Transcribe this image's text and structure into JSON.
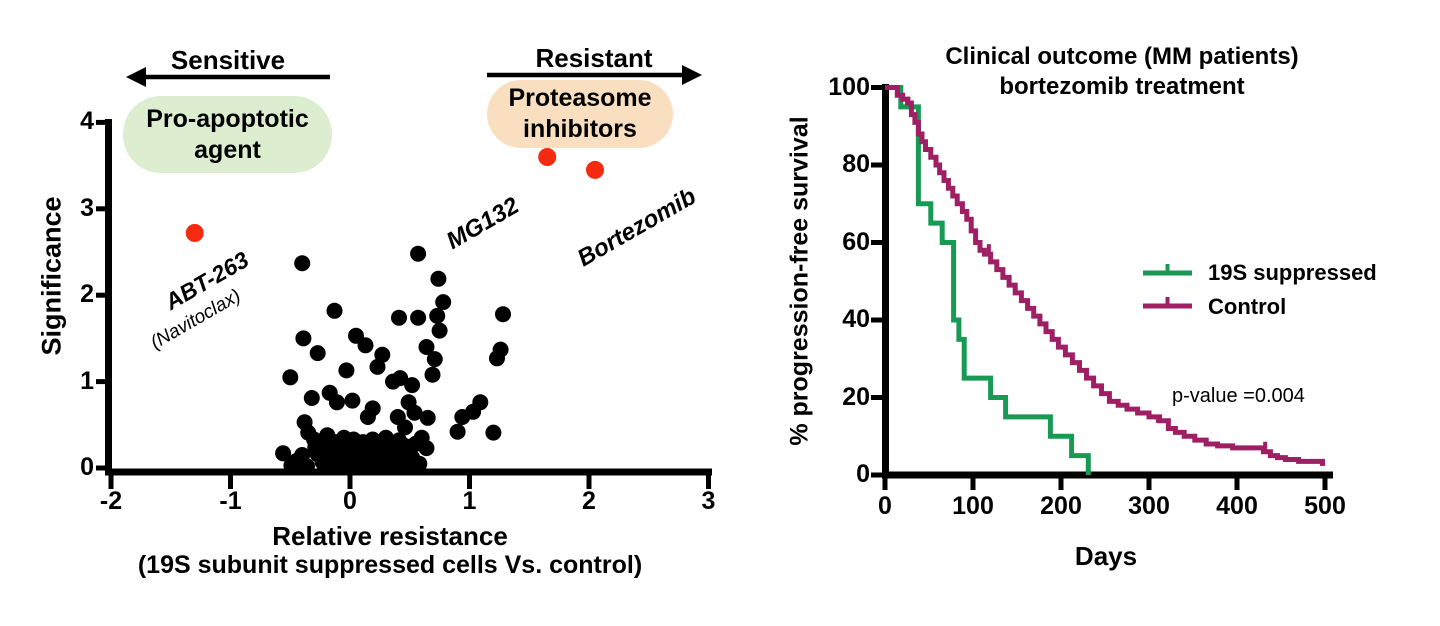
{
  "colors": {
    "accent_red": "#f52a10",
    "scatter_black": "#000000",
    "green_line": "#189a54",
    "maroon_line": "#9e1f63",
    "pill_green_bg": "#dcedd0",
    "pill_orange_bg": "#f9dfc0",
    "axis_black": "#000000"
  },
  "left_chart": {
    "sensitive_label": "Sensitive",
    "resistant_label": "Resistant",
    "pro_apoptotic_box": "Pro-apoptotic agent",
    "proteasome_box": "Proteasome inhibitors",
    "ylabel": "Significance",
    "xlabel_line1": "Relative resistance",
    "xlabel_line2": "(19S subunit suppressed cells Vs. control)",
    "drug_abt": "ABT-263",
    "drug_abt_alias": "(Navitoclax)",
    "drug_mg132": "MG132",
    "drug_bortezomib": "Bortezomib"
  },
  "right_chart": {
    "title_line1": "Clinical outcome (MM patients)",
    "title_line2": "bortezomib treatment",
    "ylabel": "% progression-free survival",
    "xlabel": "Days",
    "legend": [
      {
        "label": "19S suppressed",
        "color_key": "green_line"
      },
      {
        "label": "Control",
        "color_key": "maroon_line"
      }
    ],
    "p_value_text": "p-value =0.004"
  },
  "chart_data": [
    {
      "type": "scatter",
      "title": "",
      "xlabel": "Relative resistance (19S subunit suppressed cells Vs. control)",
      "ylabel": "Significance",
      "xlim": [
        -2,
        3
      ],
      "ylim": [
        0,
        4
      ],
      "xticks": [
        -2,
        -1,
        0,
        1,
        2,
        3
      ],
      "yticks": [
        0,
        1,
        2,
        3,
        4
      ],
      "grid": false,
      "region_labels": [
        "Sensitive",
        "Resistant",
        "Pro-apoptotic agent",
        "Proteasome inhibitors"
      ],
      "annotated_points": [
        {
          "label": "ABT-263",
          "sublabel": "(Navitoclax)",
          "x": -1.3,
          "y": 2.72
        },
        {
          "label": "MG132",
          "x": 1.65,
          "y": 3.6
        },
        {
          "label": "Bortezomib",
          "x": 2.05,
          "y": 3.45
        }
      ],
      "points": [
        [
          -0.4,
          2.37
        ],
        [
          0.57,
          2.48
        ],
        [
          -0.13,
          1.82
        ],
        [
          0.74,
          2.19
        ],
        [
          0.78,
          1.92
        ],
        [
          0.73,
          1.76
        ],
        [
          0.41,
          1.74
        ],
        [
          0.57,
          1.74
        ],
        [
          1.28,
          1.78
        ],
        [
          0.75,
          1.59
        ],
        [
          -0.39,
          1.5
        ],
        [
          0.05,
          1.53
        ],
        [
          0.13,
          1.42
        ],
        [
          -0.27,
          1.33
        ],
        [
          0.64,
          1.4
        ],
        [
          1.26,
          1.37
        ],
        [
          0.71,
          1.26
        ],
        [
          1.23,
          1.27
        ],
        [
          0.27,
          1.31
        ],
        [
          0.23,
          1.17
        ],
        [
          -0.5,
          1.05
        ],
        [
          -0.03,
          1.13
        ],
        [
          0.69,
          1.08
        ],
        [
          0.42,
          1.04
        ],
        [
          0.36,
          1.0
        ],
        [
          0.52,
          0.96
        ],
        [
          -0.32,
          0.81
        ],
        [
          -0.17,
          0.87
        ],
        [
          -0.11,
          0.76
        ],
        [
          0.02,
          0.78
        ],
        [
          0.19,
          0.69
        ],
        [
          0.15,
          0.59
        ],
        [
          0.49,
          0.76
        ],
        [
          0.54,
          0.64
        ],
        [
          0.4,
          0.59
        ],
        [
          0.65,
          0.58
        ],
        [
          1.09,
          0.76
        ],
        [
          1.03,
          0.65
        ],
        [
          0.94,
          0.59
        ],
        [
          -0.38,
          0.53
        ],
        [
          0.46,
          0.47
        ],
        [
          0.9,
          0.42
        ],
        [
          1.2,
          0.41
        ],
        [
          -0.35,
          0.41
        ],
        [
          -0.19,
          0.38
        ],
        [
          -0.29,
          0.24
        ],
        [
          -0.56,
          0.17
        ],
        [
          -0.4,
          0.15
        ],
        [
          -0.49,
          0.03
        ],
        [
          -0.23,
          0.07
        ],
        [
          -0.14,
          0.11
        ],
        [
          -0.03,
          0.15
        ],
        [
          0.17,
          0.27
        ],
        [
          0.27,
          0.3
        ],
        [
          0.28,
          0.15
        ],
        [
          0.14,
          0.11
        ],
        [
          0.25,
          0.02
        ],
        [
          0.38,
          0.27
        ],
        [
          0.64,
          0.23
        ],
        [
          0.44,
          0.15
        ],
        [
          0.5,
          0.03
        ],
        [
          0.39,
          0.01
        ],
        [
          -0.3,
          0.33
        ],
        [
          -0.24,
          0.28
        ],
        [
          -0.18,
          0.22
        ],
        [
          -0.12,
          0.3
        ],
        [
          -0.08,
          0.22
        ],
        [
          -0.06,
          0.05
        ],
        [
          -0.02,
          0.27
        ],
        [
          0.0,
          0.08
        ],
        [
          0.01,
          0.2
        ],
        [
          0.03,
          0.33
        ],
        [
          0.04,
          0.05
        ],
        [
          0.06,
          0.14
        ],
        [
          0.07,
          0.25
        ],
        [
          0.08,
          0.02
        ],
        [
          0.1,
          0.18
        ],
        [
          0.11,
          0.3
        ],
        [
          0.12,
          0.06
        ],
        [
          0.13,
          0.22
        ],
        [
          0.16,
          0.14
        ],
        [
          0.18,
          0.04
        ],
        [
          0.19,
          0.33
        ],
        [
          0.2,
          0.19
        ],
        [
          0.21,
          0.09
        ],
        [
          0.22,
          0.24
        ],
        [
          0.24,
          0.14
        ],
        [
          0.26,
          0.06
        ],
        [
          0.29,
          0.22
        ],
        [
          0.31,
          0.1
        ],
        [
          0.32,
          0.28
        ],
        [
          0.33,
          0.02
        ],
        [
          0.35,
          0.17
        ],
        [
          0.37,
          0.08
        ],
        [
          0.41,
          0.32
        ],
        [
          0.43,
          0.05
        ],
        [
          0.47,
          0.25
        ],
        [
          0.52,
          0.12
        ],
        [
          0.55,
          0.28
        ],
        [
          0.58,
          0.05
        ],
        [
          0.6,
          0.35
        ],
        [
          -0.45,
          0.08
        ],
        [
          -0.36,
          0.02
        ],
        [
          -0.27,
          0.16
        ],
        [
          -0.21,
          0.02
        ],
        [
          -0.16,
          0.06
        ],
        [
          -0.09,
          0.13
        ],
        [
          -0.05,
          0.35
        ],
        [
          0.02,
          0.02
        ],
        [
          0.09,
          0.1
        ],
        [
          0.3,
          0.35
        ],
        [
          0.36,
          0.22
        ]
      ]
    },
    {
      "type": "line",
      "subtype": "kaplan-meier-step",
      "title": "Clinical outcome (MM patients) bortezomib treatment",
      "xlabel": "Days",
      "ylabel": "% progression-free survival",
      "xlim": [
        0,
        500
      ],
      "ylim": [
        0,
        100
      ],
      "xticks": [
        0,
        100,
        200,
        300,
        400,
        500
      ],
      "yticks": [
        0,
        20,
        40,
        60,
        80,
        100
      ],
      "grid": false,
      "legend_position": "middle-right",
      "annotation": "p-value =0.004",
      "series": [
        {
          "name": "19S suppressed",
          "color_key": "green_line",
          "censor_ticks": [
            [
              25,
              95
            ]
          ],
          "steps": [
            [
              0,
              100
            ],
            [
              18,
              100
            ],
            [
              18,
              95
            ],
            [
              38,
              95
            ],
            [
              38,
              70
            ],
            [
              52,
              70
            ],
            [
              52,
              65
            ],
            [
              65,
              65
            ],
            [
              65,
              60
            ],
            [
              78,
              60
            ],
            [
              78,
              40
            ],
            [
              84,
              40
            ],
            [
              84,
              35
            ],
            [
              90,
              35
            ],
            [
              90,
              25
            ],
            [
              120,
              25
            ],
            [
              120,
              20
            ],
            [
              137,
              20
            ],
            [
              137,
              15
            ],
            [
              188,
              15
            ],
            [
              188,
              10
            ],
            [
              212,
              10
            ],
            [
              212,
              5
            ],
            [
              231,
              5
            ],
            [
              231,
              0
            ]
          ]
        },
        {
          "name": "Control",
          "color_key": "maroon_line",
          "censor_ticks": [
            [
              118,
              57
            ],
            [
              310,
              13
            ],
            [
              432,
              6
            ]
          ],
          "steps": [
            [
              0,
              100
            ],
            [
              14,
              100
            ],
            [
              14,
              98
            ],
            [
              20,
              98
            ],
            [
              20,
              97
            ],
            [
              26,
              97
            ],
            [
              26,
              96
            ],
            [
              30,
              96
            ],
            [
              30,
              93
            ],
            [
              34,
              93
            ],
            [
              34,
              91
            ],
            [
              38,
              91
            ],
            [
              38,
              88
            ],
            [
              42,
              88
            ],
            [
              42,
              86
            ],
            [
              46,
              86
            ],
            [
              46,
              84
            ],
            [
              52,
              84
            ],
            [
              52,
              82
            ],
            [
              58,
              82
            ],
            [
              58,
              80
            ],
            [
              62,
              80
            ],
            [
              62,
              78
            ],
            [
              67,
              78
            ],
            [
              67,
              76
            ],
            [
              72,
              76
            ],
            [
              72,
              74
            ],
            [
              77,
              74
            ],
            [
              77,
              72
            ],
            [
              82,
              72
            ],
            [
              82,
              70
            ],
            [
              88,
              70
            ],
            [
              88,
              68
            ],
            [
              93,
              68
            ],
            [
              93,
              66
            ],
            [
              98,
              66
            ],
            [
              98,
              63
            ],
            [
              103,
              63
            ],
            [
              103,
              60
            ],
            [
              108,
              60
            ],
            [
              108,
              58
            ],
            [
              113,
              58
            ],
            [
              113,
              57
            ],
            [
              120,
              57
            ],
            [
              120,
              55
            ],
            [
              127,
              55
            ],
            [
              127,
              53
            ],
            [
              134,
              53
            ],
            [
              134,
              51
            ],
            [
              141,
              51
            ],
            [
              141,
              49
            ],
            [
              148,
              49
            ],
            [
              148,
              47
            ],
            [
              155,
              47
            ],
            [
              155,
              45
            ],
            [
              162,
              45
            ],
            [
              162,
              43
            ],
            [
              169,
              43
            ],
            [
              169,
              41
            ],
            [
              176,
              41
            ],
            [
              176,
              39
            ],
            [
              183,
              39
            ],
            [
              183,
              37
            ],
            [
              190,
              37
            ],
            [
              190,
              35
            ],
            [
              197,
              35
            ],
            [
              197,
              33
            ],
            [
              205,
              33
            ],
            [
              205,
              31
            ],
            [
              213,
              31
            ],
            [
              213,
              29
            ],
            [
              221,
              29
            ],
            [
              221,
              27
            ],
            [
              229,
              27
            ],
            [
              229,
              25
            ],
            [
              237,
              25
            ],
            [
              237,
              23
            ],
            [
              246,
              23
            ],
            [
              246,
              21
            ],
            [
              255,
              21
            ],
            [
              255,
              19
            ],
            [
              265,
              19
            ],
            [
              265,
              18
            ],
            [
              275,
              18
            ],
            [
              275,
              17
            ],
            [
              287,
              17
            ],
            [
              287,
              16
            ],
            [
              300,
              16
            ],
            [
              300,
              15
            ],
            [
              312,
              15
            ],
            [
              312,
              14
            ],
            [
              322,
              14
            ],
            [
              322,
              12
            ],
            [
              330,
              12
            ],
            [
              330,
              11
            ],
            [
              340,
              11
            ],
            [
              340,
              10
            ],
            [
              352,
              10
            ],
            [
              352,
              9
            ],
            [
              365,
              9
            ],
            [
              365,
              8
            ],
            [
              378,
              8
            ],
            [
              378,
              7.5
            ],
            [
              395,
              7.5
            ],
            [
              395,
              7
            ],
            [
              430,
              7
            ],
            [
              430,
              6
            ],
            [
              438,
              6
            ],
            [
              438,
              5
            ],
            [
              446,
              5
            ],
            [
              446,
              4.5
            ],
            [
              455,
              4.5
            ],
            [
              455,
              4
            ],
            [
              470,
              4
            ],
            [
              470,
              3.5
            ],
            [
              497,
              3.5
            ],
            [
              497,
              3
            ],
            [
              500,
              3
            ]
          ]
        }
      ]
    }
  ]
}
